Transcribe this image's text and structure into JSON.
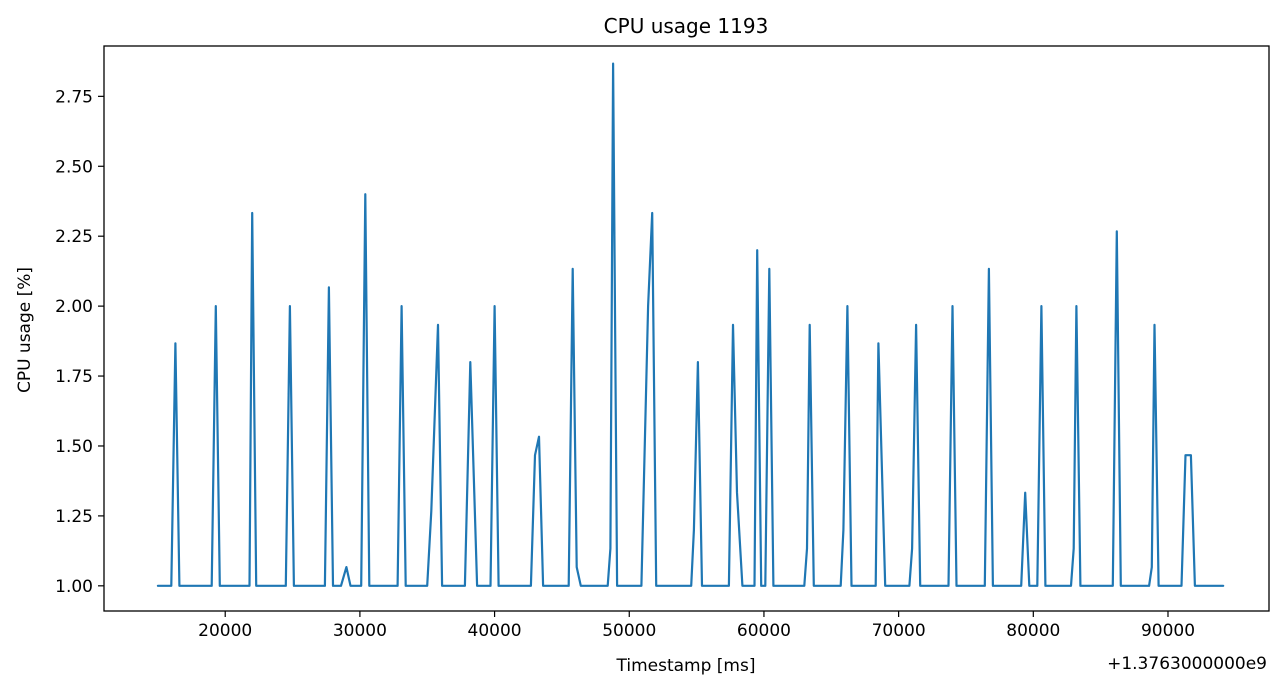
{
  "chart_data": {
    "type": "line",
    "title": "CPU usage 1193",
    "xlabel": "Timestamp [ms]",
    "ylabel": "CPU usage [%]",
    "x_offset_label": "+1.3763000000e9",
    "xlim": [
      11000,
      97500
    ],
    "ylim": [
      0.91,
      2.93
    ],
    "xticks": [
      20000,
      30000,
      40000,
      50000,
      60000,
      70000,
      80000,
      90000
    ],
    "yticks": [
      1.0,
      1.25,
      1.5,
      1.75,
      2.0,
      2.25,
      2.5,
      2.75
    ],
    "xtick_labels": [
      "20000",
      "30000",
      "40000",
      "50000",
      "60000",
      "70000",
      "80000",
      "90000"
    ],
    "ytick_labels": [
      "1.00",
      "1.25",
      "1.50",
      "1.75",
      "2.00",
      "2.25",
      "2.50",
      "2.75"
    ],
    "grid": false,
    "series": [
      {
        "color": "#1f77b4",
        "points": [
          [
            15000,
            1.0
          ],
          [
            16000,
            1.0
          ],
          [
            16300,
            1.867
          ],
          [
            16600,
            1.0
          ],
          [
            19000,
            1.0
          ],
          [
            19300,
            2.0
          ],
          [
            19600,
            1.0
          ],
          [
            21800,
            1.0
          ],
          [
            22000,
            2.333
          ],
          [
            22300,
            1.0
          ],
          [
            24500,
            1.0
          ],
          [
            24800,
            2.0
          ],
          [
            25100,
            1.0
          ],
          [
            27400,
            1.0
          ],
          [
            27700,
            2.067
          ],
          [
            28000,
            1.0
          ],
          [
            28600,
            1.0
          ],
          [
            29000,
            1.067
          ],
          [
            29300,
            1.0
          ],
          [
            30100,
            1.0
          ],
          [
            30400,
            2.4
          ],
          [
            30700,
            1.0
          ],
          [
            32800,
            1.0
          ],
          [
            33100,
            2.0
          ],
          [
            33400,
            1.0
          ],
          [
            35000,
            1.0
          ],
          [
            35300,
            1.267
          ],
          [
            35800,
            1.933
          ],
          [
            36100,
            1.0
          ],
          [
            37800,
            1.0
          ],
          [
            38200,
            1.8
          ],
          [
            38700,
            1.0
          ],
          [
            39700,
            1.0
          ],
          [
            40000,
            2.0
          ],
          [
            40300,
            1.0
          ],
          [
            42700,
            1.0
          ],
          [
            43000,
            1.467
          ],
          [
            43300,
            1.533
          ],
          [
            43600,
            1.0
          ],
          [
            45500,
            1.0
          ],
          [
            45800,
            2.133
          ],
          [
            46100,
            1.067
          ],
          [
            46400,
            1.0
          ],
          [
            48400,
            1.0
          ],
          [
            48600,
            1.133
          ],
          [
            48800,
            2.867
          ],
          [
            49100,
            1.0
          ],
          [
            50900,
            1.0
          ],
          [
            51400,
            2.0
          ],
          [
            51700,
            2.333
          ],
          [
            52000,
            1.0
          ],
          [
            54600,
            1.0
          ],
          [
            54800,
            1.2
          ],
          [
            55100,
            1.8
          ],
          [
            55400,
            1.0
          ],
          [
            57400,
            1.0
          ],
          [
            57700,
            1.933
          ],
          [
            58000,
            1.333
          ],
          [
            58400,
            1.0
          ],
          [
            59300,
            1.0
          ],
          [
            59500,
            2.2
          ],
          [
            59800,
            1.0
          ],
          [
            60100,
            1.0
          ],
          [
            60400,
            2.133
          ],
          [
            60700,
            1.0
          ],
          [
            63000,
            1.0
          ],
          [
            63200,
            1.133
          ],
          [
            63400,
            1.933
          ],
          [
            63700,
            1.0
          ],
          [
            65700,
            1.0
          ],
          [
            65900,
            1.2
          ],
          [
            66200,
            2.0
          ],
          [
            66500,
            1.0
          ],
          [
            68300,
            1.0
          ],
          [
            68500,
            1.867
          ],
          [
            69000,
            1.0
          ],
          [
            70800,
            1.0
          ],
          [
            71000,
            1.133
          ],
          [
            71300,
            1.933
          ],
          [
            71600,
            1.0
          ],
          [
            73700,
            1.0
          ],
          [
            74000,
            2.0
          ],
          [
            74300,
            1.0
          ],
          [
            76400,
            1.0
          ],
          [
            76700,
            2.133
          ],
          [
            77000,
            1.0
          ],
          [
            79100,
            1.0
          ],
          [
            79400,
            1.333
          ],
          [
            79700,
            1.0
          ],
          [
            80300,
            1.0
          ],
          [
            80600,
            2.0
          ],
          [
            80900,
            1.0
          ],
          [
            82800,
            1.0
          ],
          [
            83000,
            1.133
          ],
          [
            83200,
            2.0
          ],
          [
            83500,
            1.0
          ],
          [
            85900,
            1.0
          ],
          [
            86200,
            2.267
          ],
          [
            86500,
            1.0
          ],
          [
            88600,
            1.0
          ],
          [
            88800,
            1.067
          ],
          [
            89000,
            1.933
          ],
          [
            89300,
            1.0
          ],
          [
            91000,
            1.0
          ],
          [
            91300,
            1.467
          ],
          [
            91700,
            1.467
          ],
          [
            92000,
            1.0
          ],
          [
            94100,
            1.0
          ]
        ]
      }
    ]
  }
}
